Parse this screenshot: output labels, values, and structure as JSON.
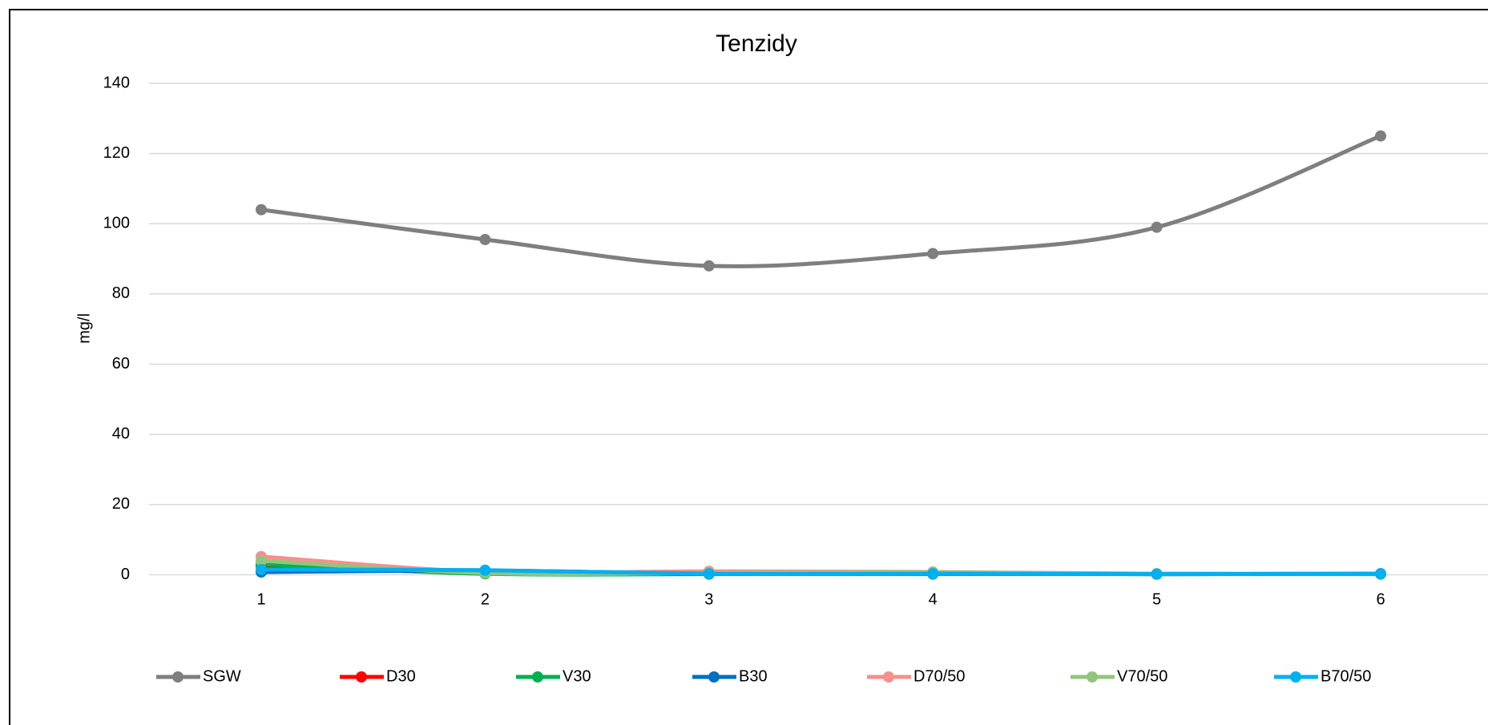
{
  "chart_data": {
    "type": "line",
    "title": "Tenzidy",
    "y_label": "mg/l",
    "categories": [
      "1",
      "2",
      "3",
      "4",
      "5",
      "6"
    ],
    "series": [
      {
        "name": "SGW",
        "color": "#7f7f7f",
        "values": [
          104,
          95.5,
          88,
          91.5,
          99,
          125
        ]
      },
      {
        "name": "D30",
        "color": "#ff0000",
        "values": [
          2.5,
          0.5,
          0.3,
          0.3,
          0.2,
          0.3
        ]
      },
      {
        "name": "V30",
        "color": "#00b050",
        "values": [
          3,
          0.3,
          0.2,
          0.2,
          0.2,
          0.2
        ]
      },
      {
        "name": "B30",
        "color": "#0070c0",
        "values": [
          0.8,
          1.2,
          0.3,
          0.3,
          0.2,
          0.3
        ]
      },
      {
        "name": "D70/50",
        "color": "#f4908e",
        "values": [
          5.2,
          0.8,
          1,
          0.8,
          0.3,
          0.3
        ]
      },
      {
        "name": "V70/50",
        "color": "#93c47d",
        "values": [
          4,
          0.5,
          0.5,
          0.7,
          0.3,
          0.3
        ]
      },
      {
        "name": "B70/50",
        "color": "#00b0f0",
        "values": [
          1.5,
          1.3,
          0.3,
          0.3,
          0.2,
          0.3
        ]
      }
    ],
    "ylim": [
      0,
      140
    ],
    "yticks": [
      0,
      20,
      40,
      60,
      80,
      100,
      120,
      140
    ],
    "grid": true,
    "legend": "bottom"
  }
}
